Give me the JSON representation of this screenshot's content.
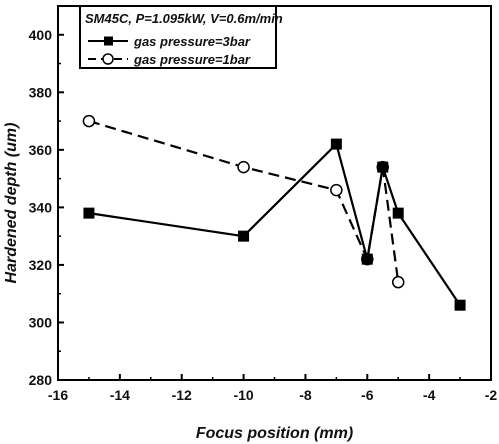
{
  "chart_data": {
    "type": "line",
    "title": "",
    "xlabel": "Focus position (mm)",
    "ylabel": "Hardened depth (um)",
    "xlim": [
      -16,
      -2
    ],
    "ylim": [
      280,
      410
    ],
    "xticks": [
      -16,
      -14,
      -12,
      -10,
      -8,
      -6,
      -4,
      -2
    ],
    "yticks": [
      280,
      300,
      320,
      340,
      360,
      380,
      400
    ],
    "legend": {
      "title": "SM45C, P=1.095kW, V=0.6m/min",
      "placement": "top-left"
    },
    "series": [
      {
        "name": "gas pressure=3bar",
        "marker": "filled-square",
        "line": "solid",
        "color": "#000000",
        "x": [
          -15,
          -10,
          -7,
          -6,
          -5.5,
          -5,
          -3
        ],
        "y": [
          338,
          330,
          362,
          322,
          354,
          338,
          306
        ]
      },
      {
        "name": "gas pressure=1bar",
        "marker": "open-circle",
        "line": "dashed",
        "color": "#000000",
        "x": [
          -15,
          -10,
          -7,
          -6,
          -5.5,
          -5
        ],
        "y": [
          370,
          354,
          346,
          322,
          354,
          314
        ]
      }
    ]
  }
}
